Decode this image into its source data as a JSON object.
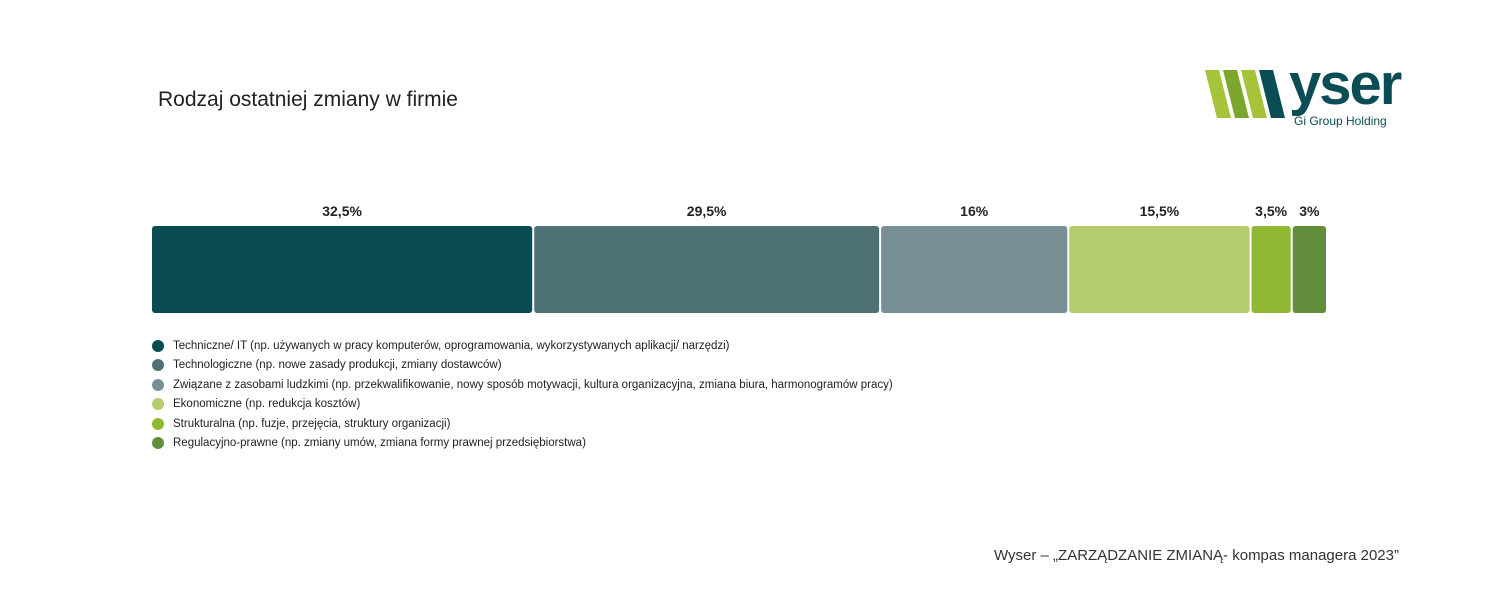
{
  "title": "Rodzaj ostatniej zmiany w firmie",
  "logo": {
    "text": "yser",
    "subtitle": "Gi Group Holding",
    "colors": {
      "primary": "#0b4d55",
      "accent": "#a6c43a",
      "accent_dark": "#7da62c"
    }
  },
  "chart_data": {
    "type": "bar",
    "orientation": "horizontal-stacked",
    "unit": "%",
    "total": 100,
    "series": [
      {
        "name": "Techniczne/ IT (np. używanych w pracy komputerów, oprogramowania, wykorzystywanych aplikacji/ narzędzi)",
        "value": 32.5,
        "label": "32,5%",
        "color": "#084c52"
      },
      {
        "name": "Technologiczne (np. nowe zasady produkcji, zmiany dostawców)",
        "value": 29.5,
        "label": "29,5%",
        "color": "#4e7176"
      },
      {
        "name": "Związane z zasobami ludzkimi (np. przekwalifikowanie, nowy sposób motywacji, kultura organizacyjna, zmiana biura, harmonogramów pracy)",
        "value": 16,
        "label": "16%",
        "color": "#788f96"
      },
      {
        "name": "Ekonomiczne (np. redukcja kosztów)",
        "value": 15.5,
        "label": "15,5%",
        "color": "#b4cc6e"
      },
      {
        "name": "Strukturalna (np. fuzje, przejęcia, struktury organizacji)",
        "value": 3.5,
        "label": "3,5%",
        "color": "#8fb833"
      },
      {
        "name": "Regulacyjno-prawne (np. zmiany umów, zmiana formy prawnej przedsiębiorstwa)",
        "value": 3,
        "label": "3%",
        "color": "#628e3b"
      }
    ],
    "legend_position": "bottom-left",
    "grid": false
  },
  "source": "Wyser – „ZARZĄDZANIE ZMIANĄ- kompas managera 2023”"
}
